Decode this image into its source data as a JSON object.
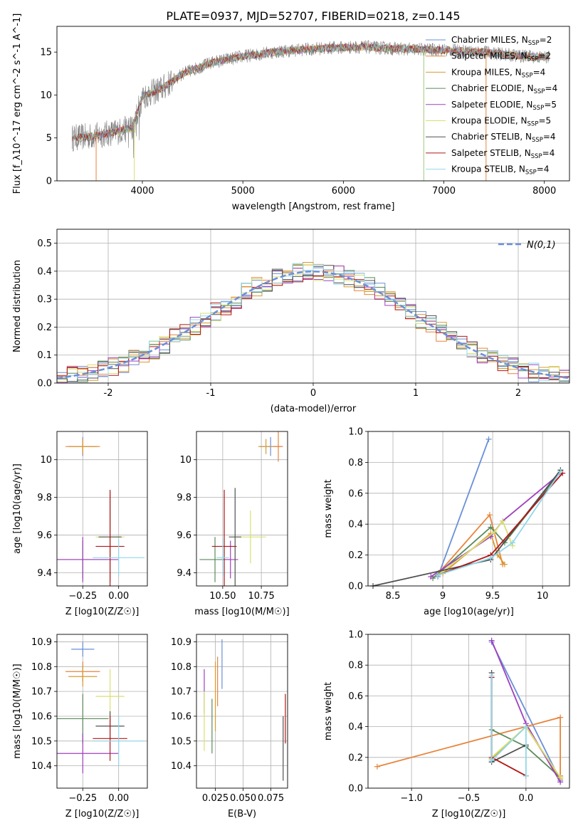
{
  "figure": {
    "title": "PLATE=0937, MJD=52707, FIBERID=0218, z=0.145"
  },
  "colors": {
    "models": [
      "#6a8fd8",
      "#e8843c",
      "#d89a30",
      "#5a8a5a",
      "#a040c0",
      "#d8e070",
      "#505050",
      "#b01818",
      "#90d8e8"
    ],
    "data_spectrum": "#808080",
    "gaussian": "#6a8fd8"
  },
  "legend_models": [
    {
      "label": "Chabrier MILES, N",
      "n": "2"
    },
    {
      "label": "Salpeter MILES, N",
      "n": "2"
    },
    {
      "label": "Kroupa MILES, N",
      "n": "4"
    },
    {
      "label": "Chabrier ELODIE, N",
      "n": "4"
    },
    {
      "label": "Salpeter ELODIE, N",
      "n": "5"
    },
    {
      "label": "Kroupa ELODIE, N",
      "n": "5"
    },
    {
      "label": "Chabrier STELIB, N",
      "n": "4"
    },
    {
      "label": "Salpeter STELIB, N",
      "n": "4"
    },
    {
      "label": "Kroupa STELIB, N",
      "n": "4"
    }
  ],
  "legend_sub": "SSP",
  "chart_data": [
    {
      "type": "line",
      "id": "spectrum",
      "xlabel": "wavelength [Angstrom, rest frame]",
      "ylabel": "Flux [f_λ10^-17 erg cm^-2 s^-1 A^-1]",
      "xlim": [
        3150,
        8250
      ],
      "ylim": [
        0,
        18
      ],
      "xticks": [
        4000,
        5000,
        6000,
        7000,
        8000
      ],
      "yticks": [
        0,
        5,
        10,
        15
      ],
      "grid": false,
      "legend_position": "top-right",
      "series_anchor_points": {
        "x": [
          3300,
          3500,
          3700,
          3900,
          4000,
          4200,
          4400,
          4700,
          5000,
          5300,
          5600,
          5900,
          6200,
          6500,
          6800,
          7100,
          7400,
          7700,
          8000
        ],
        "y": [
          5.0,
          5.2,
          5.6,
          6.2,
          9.8,
          10.8,
          12.5,
          13.8,
          14.5,
          15.0,
          15.3,
          15.5,
          15.6,
          15.4,
          15.3,
          15.2,
          15.0,
          14.6,
          14.4
        ]
      }
    },
    {
      "type": "histogram",
      "id": "residuals",
      "xlabel": "(data-model)/error",
      "ylabel": "Normed distribution",
      "xlim": [
        -2.5,
        2.5
      ],
      "ylim": [
        0,
        0.55
      ],
      "xticks": [
        -2,
        -1,
        0,
        1,
        2
      ],
      "yticks": [
        0.0,
        0.1,
        0.2,
        0.3,
        0.4,
        0.5
      ],
      "grid": true,
      "legend": {
        "label": "N(0,1)",
        "position": "top-right"
      },
      "bin_width": 0.1
    },
    {
      "type": "scatter",
      "id": "age_vs_Z",
      "xlabel": "Z [log10(Z/Z☉)]",
      "ylabel": "age  [log10(age/yr)]",
      "xlim": [
        -0.43,
        0.2
      ],
      "ylim": [
        9.33,
        10.15
      ],
      "xticks": [
        -0.25,
        0.0
      ],
      "xtick_labels": [
        "−0.25",
        "0.00"
      ],
      "yticks": [
        9.4,
        9.6,
        9.8,
        10.0
      ],
      "grid": true,
      "points": [
        {
          "x": -0.25,
          "y": 10.07,
          "xerr": 0.1,
          "yerr": 0.05
        },
        {
          "x": -0.25,
          "y": 10.07,
          "xerr": 0.12,
          "yerr": 0.04
        },
        {
          "x": -0.25,
          "y": 10.07,
          "xerr": 0.1,
          "yerr": 0.04
        },
        {
          "x": -0.25,
          "y": 9.47,
          "xerr": 0.18,
          "yerr": 0.1
        },
        {
          "x": -0.25,
          "y": 9.47,
          "xerr": 0.25,
          "yerr": 0.12
        },
        {
          "x": -0.06,
          "y": 9.59,
          "xerr": 0.1,
          "yerr": 0.14
        },
        {
          "x": -0.06,
          "y": 9.59,
          "xerr": 0.08,
          "yerr": 0.24
        },
        {
          "x": -0.06,
          "y": 9.54,
          "xerr": 0.1,
          "yerr": 0.3
        },
        {
          "x": 0.0,
          "y": 9.48,
          "xerr": 0.18,
          "yerr": 0.1
        }
      ]
    },
    {
      "type": "scatter",
      "id": "age_vs_mass",
      "xlabel": "mass [log10(M/M☉)]",
      "ylabel": "",
      "xlim": [
        10.33,
        10.92
      ],
      "ylim": [
        9.33,
        10.15
      ],
      "xticks": [
        10.5,
        10.75
      ],
      "xtick_labels": [
        "10.50",
        "10.75"
      ],
      "yticks": [
        9.4,
        9.6,
        9.8,
        10.0
      ],
      "grid": true,
      "points": [
        {
          "x": 10.81,
          "y": 10.07,
          "xerr": 0.07,
          "yerr": 0.05
        },
        {
          "x": 10.86,
          "y": 10.07,
          "xerr": 0.03,
          "yerr": 0.08
        },
        {
          "x": 10.78,
          "y": 10.07,
          "xerr": 0.05,
          "yerr": 0.04
        },
        {
          "x": 10.45,
          "y": 9.47,
          "xerr": 0.1,
          "yerr": 0.12
        },
        {
          "x": 10.55,
          "y": 9.47,
          "xerr": 0.05,
          "yerr": 0.1
        },
        {
          "x": 10.68,
          "y": 9.59,
          "xerr": 0.1,
          "yerr": 0.14
        },
        {
          "x": 10.58,
          "y": 9.59,
          "xerr": 0.04,
          "yerr": 0.26
        },
        {
          "x": 10.51,
          "y": 9.54,
          "xerr": 0.08,
          "yerr": 0.3
        },
        {
          "x": 10.5,
          "y": 9.48,
          "xerr": 0.04,
          "yerr": 0.1
        }
      ]
    },
    {
      "type": "line",
      "id": "mass_weight_vs_age",
      "xlabel": "age  [log10(age/yr)]",
      "ylabel": "mass weight",
      "xlim": [
        8.25,
        10.27
      ],
      "ylim": [
        0,
        1
      ],
      "xticks": [
        8.5,
        9.0,
        9.5,
        10.0
      ],
      "yticks": [
        0.0,
        0.2,
        0.4,
        0.6,
        0.8,
        1.0
      ],
      "grid": true,
      "series": [
        {
          "color_index": 0,
          "x": [
            8.95,
            9.46
          ],
          "y": [
            0.06,
            0.95
          ]
        },
        {
          "color_index": 1,
          "x": [
            8.98,
            9.47,
            9.6
          ],
          "y": [
            0.1,
            0.46,
            0.14
          ]
        },
        {
          "color_index": 2,
          "x": [
            9.0,
            9.48,
            9.55,
            9.62
          ],
          "y": [
            0.08,
            0.34,
            0.2,
            0.14
          ]
        },
        {
          "color_index": 3,
          "x": [
            8.9,
            9.48,
            9.62,
            10.18
          ],
          "y": [
            0.05,
            0.38,
            0.28,
            0.74
          ]
        },
        {
          "color_index": 4,
          "x": [
            8.88,
            9.48,
            9.6,
            10.18
          ],
          "y": [
            0.06,
            0.32,
            0.42,
            0.73
          ]
        },
        {
          "color_index": 5,
          "x": [
            8.95,
            9.52,
            9.6,
            9.7
          ],
          "y": [
            0.07,
            0.35,
            0.42,
            0.26
          ]
        },
        {
          "color_index": 6,
          "x": [
            8.3,
            9.48,
            10.18
          ],
          "y": [
            0.0,
            0.17,
            0.75
          ]
        },
        {
          "color_index": 7,
          "x": [
            8.95,
            9.48,
            10.2
          ],
          "y": [
            0.07,
            0.2,
            0.73
          ]
        },
        {
          "color_index": 8,
          "x": [
            8.95,
            9.48,
            9.7,
            10.18
          ],
          "y": [
            0.07,
            0.18,
            0.28,
            0.74
          ]
        }
      ]
    },
    {
      "type": "scatter",
      "id": "mass_vs_Z",
      "xlabel": "Z [log10(Z/Z☉)]",
      "ylabel": "mass [log10(M/M☉)]",
      "xlim": [
        -0.43,
        0.2
      ],
      "ylim": [
        10.31,
        10.93
      ],
      "xticks": [
        -0.25,
        0.0
      ],
      "xtick_labels": [
        "−0.25",
        "0.00"
      ],
      "yticks": [
        10.4,
        10.5,
        10.6,
        10.7,
        10.8,
        10.9
      ],
      "grid": true,
      "points": [
        {
          "x": -0.25,
          "y": 10.87,
          "xerr": 0.08,
          "yerr": 0.03
        },
        {
          "x": -0.25,
          "y": 10.78,
          "xerr": 0.12,
          "yerr": 0.04
        },
        {
          "x": -0.25,
          "y": 10.76,
          "xerr": 0.1,
          "yerr": 0.04
        },
        {
          "x": -0.25,
          "y": 10.59,
          "xerr": 0.18,
          "yerr": 0.1
        },
        {
          "x": -0.25,
          "y": 10.45,
          "xerr": 0.25,
          "yerr": 0.08
        },
        {
          "x": -0.06,
          "y": 10.68,
          "xerr": 0.1,
          "yerr": 0.11
        },
        {
          "x": -0.06,
          "y": 10.56,
          "xerr": 0.1,
          "yerr": 0.06
        },
        {
          "x": -0.06,
          "y": 10.51,
          "xerr": 0.12,
          "yerr": 0.09
        },
        {
          "x": 0.0,
          "y": 10.5,
          "xerr": 0.18,
          "yerr": 0.1
        }
      ]
    },
    {
      "type": "scatter",
      "id": "mass_vs_ebv",
      "xlabel": "E(B-V)",
      "ylabel": "",
      "xlim": [
        0.008,
        0.09
      ],
      "ylim": [
        10.31,
        10.93
      ],
      "xticks": [
        0.025,
        0.05,
        0.075
      ],
      "xtick_labels": [
        "0.025",
        "0.050",
        "0.075"
      ],
      "yticks": [
        10.4,
        10.5,
        10.6,
        10.7,
        10.8,
        10.9
      ],
      "grid": true,
      "points": [
        {
          "x": 0.031,
          "y": 10.81,
          "yerr": 0.1
        },
        {
          "x": 0.027,
          "y": 10.74,
          "yerr": 0.1
        },
        {
          "x": 0.025,
          "y": 10.68,
          "yerr": 0.14
        },
        {
          "x": 0.022,
          "y": 10.56,
          "yerr": 0.11
        },
        {
          "x": 0.015,
          "y": 10.7,
          "yerr": 0.09
        },
        {
          "x": 0.015,
          "y": 10.58,
          "yerr": 0.12
        },
        {
          "x": 0.086,
          "y": 10.47,
          "yerr": 0.13
        },
        {
          "x": 0.088,
          "y": 10.59,
          "yerr": 0.1
        }
      ]
    },
    {
      "type": "line",
      "id": "mass_weight_vs_Z",
      "xlabel": "Z [log10(Z/Z☉)]",
      "ylabel": "mass weight",
      "xlim": [
        -1.38,
        0.38
      ],
      "ylim": [
        0,
        1
      ],
      "xticks": [
        -1.0,
        -0.5,
        0.0
      ],
      "xtick_labels": [
        "−1.0",
        "−0.5",
        "0.0"
      ],
      "yticks": [
        0.0,
        0.2,
        0.4,
        0.6,
        0.8,
        1.0
      ],
      "grid": true,
      "series": [
        {
          "color_index": 0,
          "x": [
            -0.3,
            0.3
          ],
          "y": [
            0.95,
            0.05
          ]
        },
        {
          "color_index": 1,
          "x": [
            -1.3,
            0.3,
            0.3
          ],
          "y": [
            0.14,
            0.46,
            0.08
          ]
        },
        {
          "color_index": 2,
          "x": [
            -0.3,
            0.0,
            0.3
          ],
          "y": [
            0.19,
            0.4,
            0.06
          ]
        },
        {
          "color_index": 3,
          "x": [
            -0.3,
            0.0,
            0.3
          ],
          "y": [
            0.38,
            0.27,
            0.07
          ]
        },
        {
          "color_index": 4,
          "x": [
            -0.3,
            0.0,
            0.3
          ],
          "y": [
            0.96,
            0.42,
            0.04
          ]
        },
        {
          "color_index": 5,
          "x": [
            -0.3,
            0.0,
            0.3
          ],
          "y": [
            0.2,
            0.4,
            0.07
          ]
        },
        {
          "color_index": 6,
          "x": [
            -0.3,
            -0.3,
            0.0
          ],
          "y": [
            0.75,
            0.17,
            0.28
          ]
        },
        {
          "color_index": 7,
          "x": [
            -0.3,
            -0.3,
            0.0
          ],
          "y": [
            0.72,
            0.2,
            0.08
          ]
        },
        {
          "color_index": 8,
          "x": [
            -0.3,
            -0.3,
            0.0,
            0.0
          ],
          "y": [
            0.73,
            0.18,
            0.4,
            0.08
          ]
        }
      ]
    }
  ]
}
